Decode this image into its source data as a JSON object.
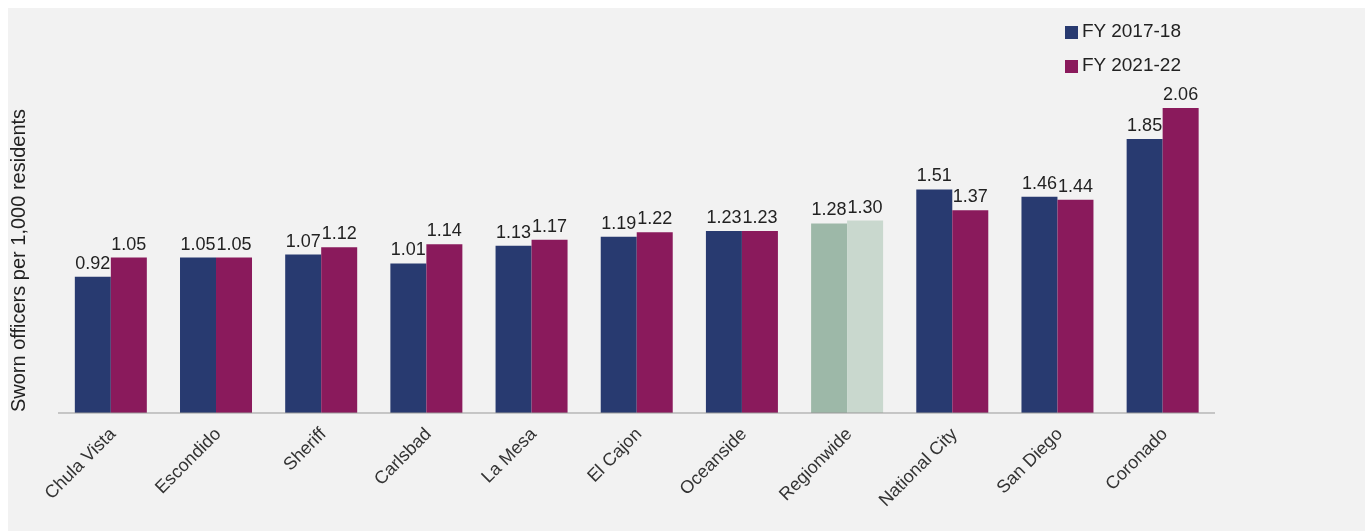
{
  "chart_data": {
    "type": "bar",
    "ylabel": "Sworn officers per 1,000 residents",
    "categories": [
      "Chula Vista",
      "Escondido",
      "Sheriff",
      "Carlsbad",
      "La Mesa",
      "El Cajon",
      "Oceanside",
      "Regionwide",
      "National City",
      "San Diego",
      "Coronado"
    ],
    "series": [
      {
        "name": "FY 2017-18",
        "color": "#283a70",
        "colors": [
          "#283a70",
          "#283a70",
          "#283a70",
          "#283a70",
          "#283a70",
          "#283a70",
          "#283a70",
          "#9db8a8",
          "#283a70",
          "#283a70",
          "#283a70"
        ],
        "values": [
          0.92,
          1.05,
          1.07,
          1.01,
          1.13,
          1.19,
          1.23,
          1.28,
          1.51,
          1.46,
          1.85
        ],
        "value_labels": [
          "0.92",
          "1.05",
          "1.07",
          "1.01",
          "1.13",
          "1.19",
          "1.23",
          "1.28",
          "1.51",
          "1.46",
          "1.85"
        ]
      },
      {
        "name": "FY 2021-22",
        "color": "#8a1a5c",
        "colors": [
          "#8a1a5c",
          "#8a1a5c",
          "#8a1a5c",
          "#8a1a5c",
          "#8a1a5c",
          "#8a1a5c",
          "#8a1a5c",
          "#c9d8ce",
          "#8a1a5c",
          "#8a1a5c",
          "#8a1a5c"
        ],
        "values": [
          1.05,
          1.05,
          1.12,
          1.14,
          1.17,
          1.22,
          1.23,
          1.3,
          1.37,
          1.44,
          2.06
        ],
        "value_labels": [
          "1.05",
          "1.05",
          "1.12",
          "1.14",
          "1.17",
          "1.22",
          "1.23",
          "1.30",
          "1.37",
          "1.44",
          "2.06"
        ]
      }
    ],
    "legend": "top right"
  }
}
